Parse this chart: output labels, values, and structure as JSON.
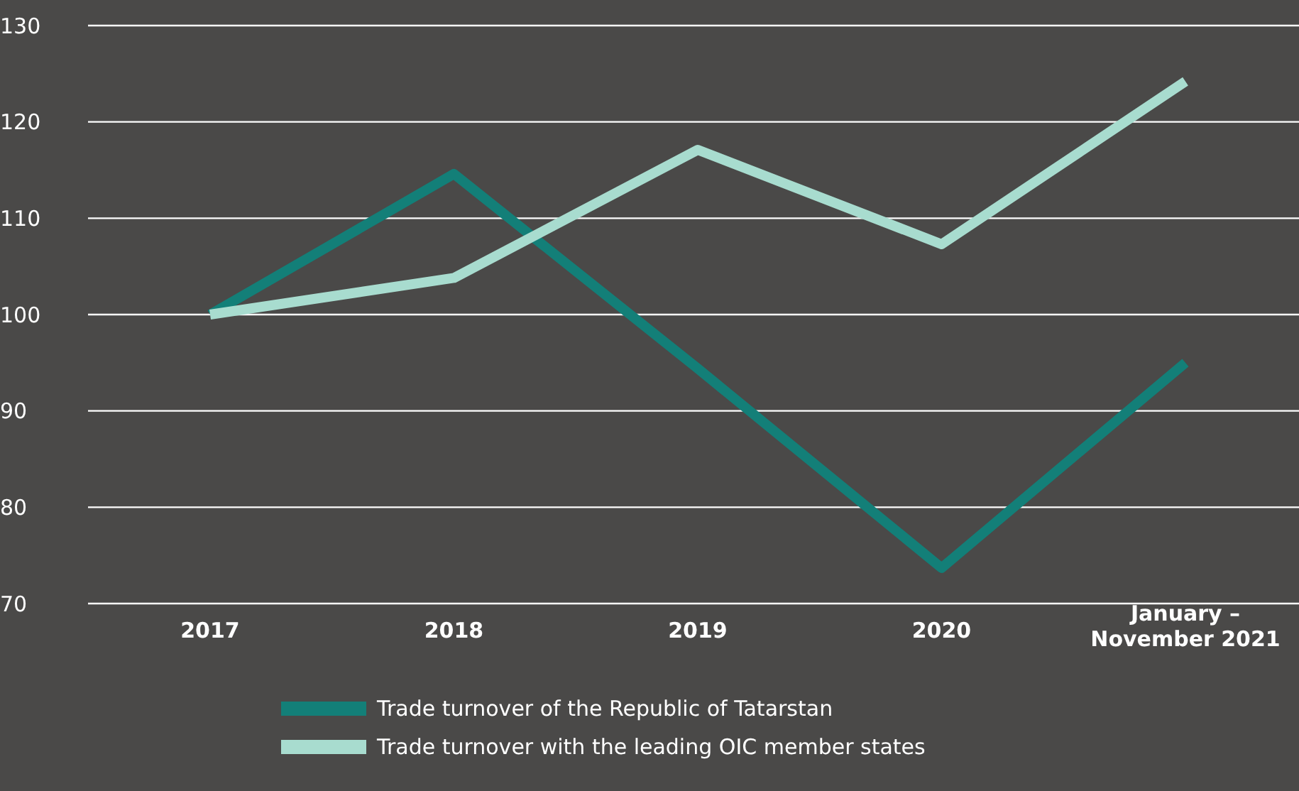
{
  "chart_data": {
    "type": "line",
    "categories": [
      "2017",
      "2018",
      "2019",
      "2020",
      "January – November 2021"
    ],
    "series": [
      {
        "name": "Trade turnover of the Republic of Tatarstan",
        "color": "#137f78",
        "values": [
          100,
          114.6,
          94.4,
          73.7,
          95
        ]
      },
      {
        "name": "Trade turnover with the leading OIC member states",
        "color": "#a8dccf",
        "values": [
          100,
          103.8,
          117.1,
          107.3,
          124.2
        ]
      }
    ],
    "ylim": [
      70,
      130
    ],
    "yticks": [
      70,
      80,
      90,
      100,
      110,
      120,
      130
    ],
    "grid": "y",
    "legend": "bottom",
    "marker": "none",
    "line_style": "solid"
  }
}
